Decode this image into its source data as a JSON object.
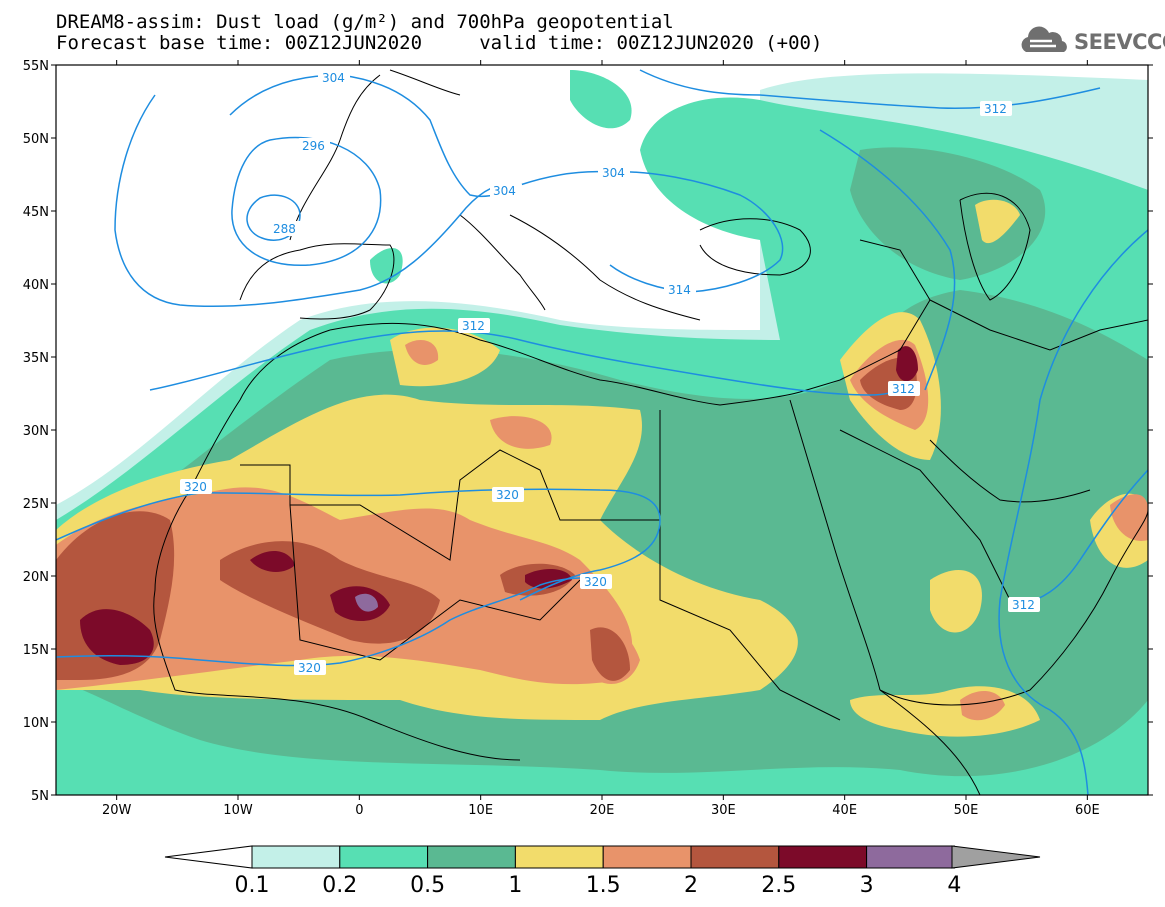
{
  "title_line1": "DREAM8-assim: Dust load (g/m²) and 700hPa geopotential",
  "title_line2": "Forecast base time: 00Z12JUN2020     valid time: 00Z12JUN2020 (+00)",
  "logo": {
    "icon": "cloud-logo-icon",
    "text": "SEEVCCC"
  },
  "map": {
    "extent": {
      "lon": [
        -25,
        65
      ],
      "lat": [
        5,
        55
      ]
    },
    "lat_ticks": [
      "55N",
      "50N",
      "45N",
      "40N",
      "35N",
      "30N",
      "25N",
      "20N",
      "15N",
      "10N",
      "5N"
    ],
    "lon_ticks": [
      "20W",
      "10W",
      "0",
      "10E",
      "20E",
      "30E",
      "40E",
      "50E",
      "60E"
    ],
    "geopotential_contour_labels": [
      "304",
      "296",
      "288",
      "304",
      "304",
      "312",
      "312",
      "312",
      "320",
      "320",
      "320",
      "320",
      "312",
      "314"
    ],
    "contour_color": "#1e8de0"
  },
  "colorbar": {
    "labels": [
      "0.1",
      "0.2",
      "0.5",
      "1",
      "1.5",
      "2",
      "2.5",
      "3",
      "4"
    ],
    "colors": [
      "#c3f0e8",
      "#57dfb3",
      "#5ab992",
      "#f2dc6b",
      "#e8936a",
      "#b4563e",
      "#7c0a29",
      "#8e6a9d",
      "#a0a0a0"
    ]
  }
}
